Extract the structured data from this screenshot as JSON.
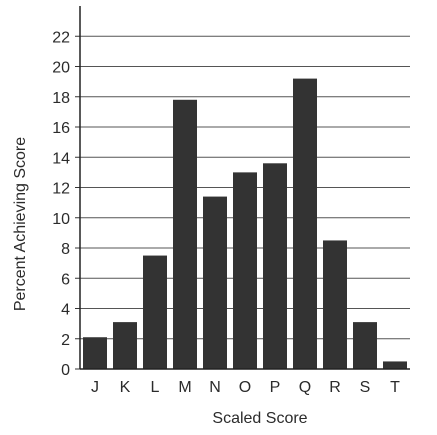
{
  "chart_data": {
    "type": "bar",
    "categories": [
      "J",
      "K",
      "L",
      "M",
      "N",
      "O",
      "P",
      "Q",
      "R",
      "S",
      "T"
    ],
    "values": [
      2.1,
      3.1,
      7.5,
      17.8,
      11.4,
      13.0,
      13.6,
      19.2,
      8.5,
      3.1,
      0.5
    ],
    "xlabel": "Scaled Score",
    "ylabel": "Percent Achieving Score",
    "ylim": [
      0,
      24
    ],
    "yticks": [
      0,
      2,
      4,
      6,
      8,
      10,
      12,
      14,
      16,
      18,
      20,
      22
    ],
    "grid": true,
    "bar_color": "#333333"
  }
}
